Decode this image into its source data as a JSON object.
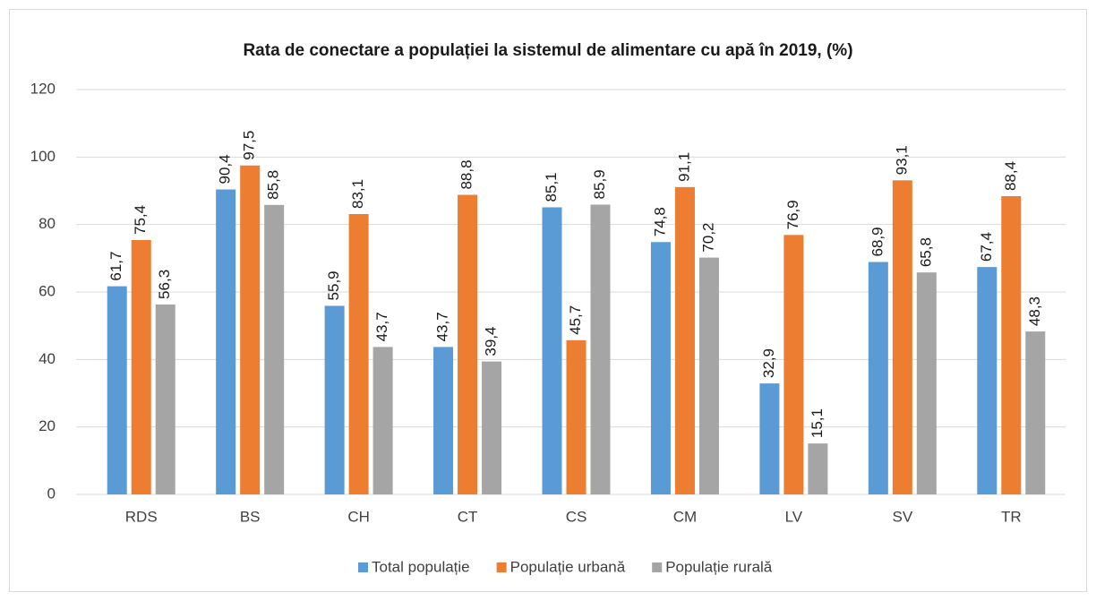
{
  "chart_data": {
    "type": "bar",
    "title": "Rata de conectare a populației la sistemul de alimentare cu apă în 2019, (%)",
    "categories": [
      "RDS",
      "BS",
      "CH",
      "CT",
      "CS",
      "CM",
      "LV",
      "SV",
      "TR"
    ],
    "series": [
      {
        "name": "Total populație",
        "color": "#5b9bd5",
        "values": [
          61.7,
          90.4,
          55.9,
          43.7,
          85.1,
          74.8,
          32.9,
          68.9,
          67.4
        ],
        "value_labels": [
          "61,7",
          "90,4",
          "55,9",
          "43,7",
          "85,1",
          "74,8",
          "32,9",
          "68,9",
          "67,4"
        ]
      },
      {
        "name": "Populație urbană",
        "color": "#ed7d31",
        "values": [
          75.4,
          97.5,
          83.1,
          88.8,
          45.7,
          91.1,
          76.9,
          93.1,
          88.4
        ],
        "value_labels": [
          "75,4",
          "97,5",
          "83,1",
          "88,8",
          "45,7",
          "91,1",
          "76,9",
          "93,1",
          "88,4"
        ]
      },
      {
        "name": "Populație rurală",
        "color": "#a5a5a5",
        "values": [
          56.3,
          85.8,
          43.7,
          39.4,
          85.9,
          70.2,
          15.1,
          65.8,
          48.3
        ],
        "value_labels": [
          "56,3",
          "85,8",
          "43,7",
          "39,4",
          "85,9",
          "70,2",
          "15,1",
          "65,8",
          "48,3"
        ]
      }
    ],
    "ylim": [
      0,
      120
    ],
    "yticks": [
      0,
      20,
      40,
      60,
      80,
      100,
      120
    ],
    "grid": true,
    "legend": "bottom"
  }
}
